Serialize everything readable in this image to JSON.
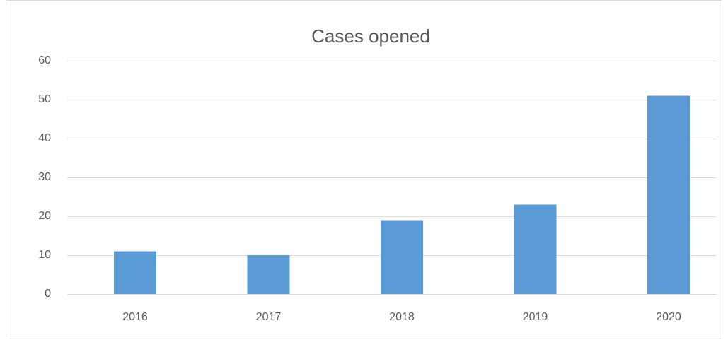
{
  "chart_data": {
    "type": "bar",
    "title": "Cases opened",
    "categories": [
      "2016",
      "2017",
      "2018",
      "2019",
      "2020"
    ],
    "values": [
      11,
      10,
      19,
      23,
      51
    ],
    "color": "#5b9bd5",
    "ylim": [
      0,
      60
    ],
    "yticks": [
      0,
      10,
      20,
      30,
      40,
      50,
      60
    ],
    "grid": true
  }
}
